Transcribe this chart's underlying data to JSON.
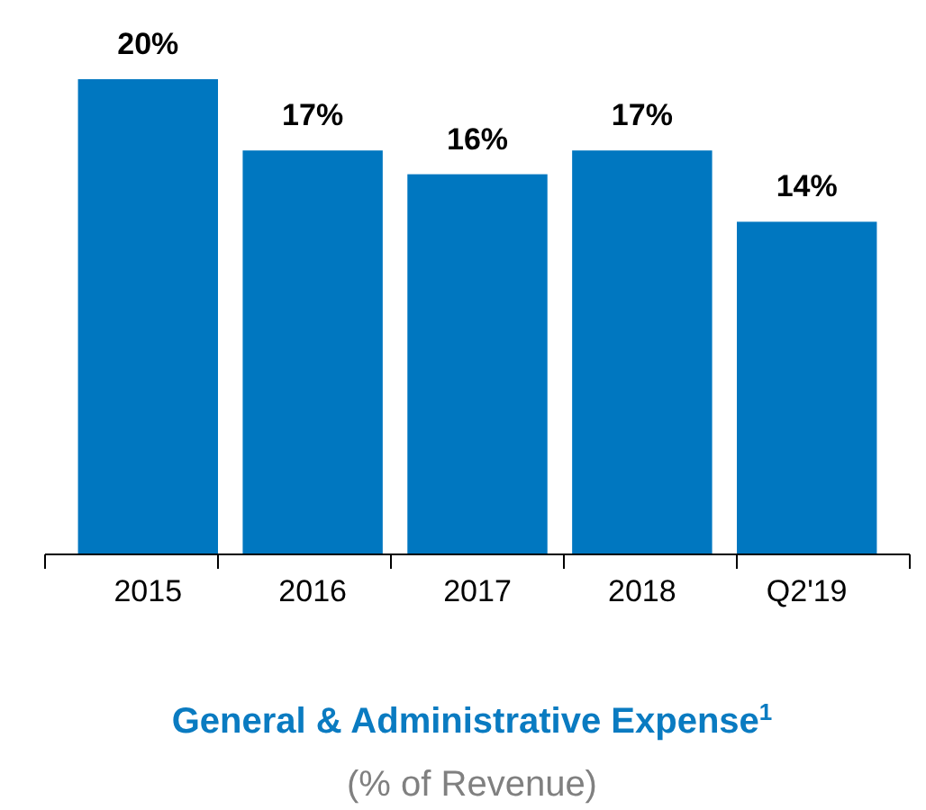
{
  "chart_data": {
    "type": "bar",
    "title": "General & Administrative Expense$^{1}$",
    "subtitle": "(% of Revenue)",
    "categories": [
      "2015",
      "2016",
      "2017",
      "2018",
      "Q2'19"
    ],
    "values": [
      20,
      17,
      16,
      17,
      14
    ],
    "value_labels": [
      "20%",
      "17%",
      "16%",
      "17%",
      "14%"
    ],
    "color": "#0077c0"
  }
}
